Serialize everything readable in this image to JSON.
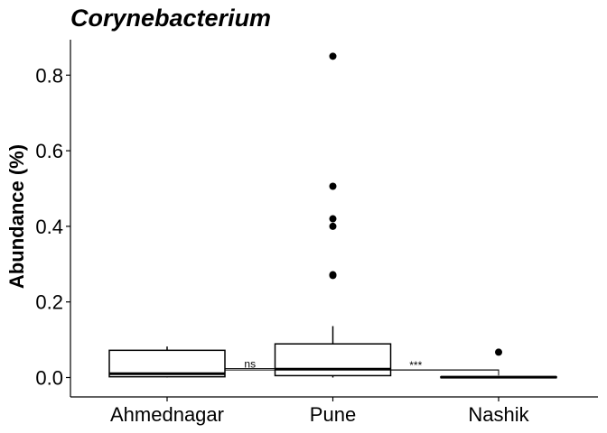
{
  "chart_data": {
    "type": "box",
    "title": "Corynebacterium",
    "xlabel": "",
    "ylabel": "Abundance (%)",
    "categories": [
      "Ahmednagar",
      "Pune",
      "Nashik"
    ],
    "ylim": [
      -0.05,
      0.89
    ],
    "yticks": [
      0.0,
      0.2,
      0.4,
      0.6,
      0.8
    ],
    "ytick_labels": [
      "0.0",
      "0.2",
      "0.4",
      "0.6",
      "0.8"
    ],
    "grid": false,
    "boxes": [
      {
        "category": "Ahmednagar",
        "whisker_low": 0.0,
        "q1": 0.002,
        "median": 0.01,
        "q3": 0.072,
        "whisker_high": 0.082,
        "outliers": []
      },
      {
        "category": "Pune",
        "whisker_low": 0.0,
        "q1": 0.005,
        "median": 0.022,
        "q3": 0.089,
        "whisker_high": 0.136,
        "outliers": [
          0.27,
          0.272,
          0.4,
          0.42,
          0.506,
          0.85
        ]
      },
      {
        "category": "Nashik",
        "whisker_low": 0.0,
        "q1": 0.0,
        "median": 0.001,
        "q3": 0.002,
        "whisker_high": 0.003,
        "outliers": [
          0.067
        ]
      }
    ],
    "comparisons": [
      {
        "from": "Ahmednagar",
        "to": "Pune",
        "y": 0.024,
        "label": "ns"
      },
      {
        "from": "Ahmednagar",
        "to": "Nashik",
        "y": 0.02,
        "label": "*"
      },
      {
        "from": "Pune",
        "to": "Nashik",
        "y": 0.02,
        "label": "***"
      }
    ]
  }
}
